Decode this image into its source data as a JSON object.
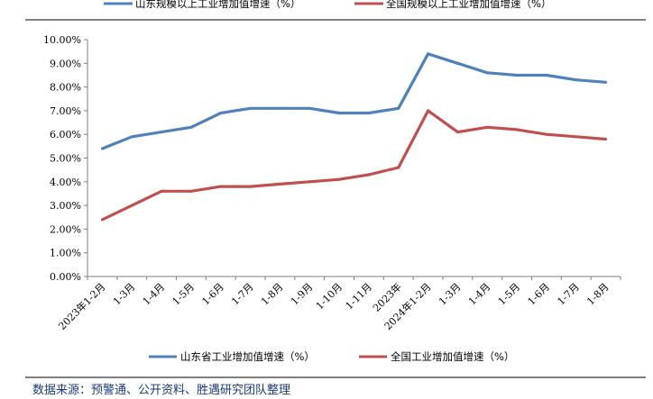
{
  "chart_data": {
    "type": "line",
    "categories": [
      "2023年1-2月",
      "1-3月",
      "1-4月",
      "1-5月",
      "1-6月",
      "1-7月",
      "1-8月",
      "1-9月",
      "1-10月",
      "1-11月",
      "2023年",
      "2024年1-2月",
      "1-3月",
      "1-4月",
      "1-5月",
      "1-6月",
      "1-7月",
      "1-8月"
    ],
    "series": [
      {
        "name": "山东省工业增加值增速（%）",
        "color": "#4f81bd",
        "values": [
          5.4,
          5.9,
          6.1,
          6.3,
          6.9,
          7.1,
          7.1,
          7.1,
          6.9,
          6.9,
          7.1,
          9.4,
          9.0,
          8.6,
          8.5,
          8.5,
          8.3,
          8.2
        ]
      },
      {
        "name": "全国工业增加值增速（%）",
        "color": "#c0504d",
        "values": [
          2.4,
          3.0,
          3.6,
          3.6,
          3.8,
          3.8,
          3.9,
          4.0,
          4.1,
          4.3,
          4.6,
          7.0,
          6.1,
          6.3,
          6.2,
          6.0,
          5.9,
          5.8
        ]
      }
    ],
    "top_legend": [
      "山东规模以上工业增加值增速（%）",
      "全国规模以上工业增加值增速（%）"
    ],
    "yticks": [
      "0.00%",
      "1.00%",
      "2.00%",
      "3.00%",
      "4.00%",
      "5.00%",
      "6.00%",
      "7.00%",
      "8.00%",
      "9.00%",
      "10.00%"
    ],
    "ylim": [
      0,
      10
    ],
    "grid": false,
    "legend_placement": "bottom"
  },
  "source_note": "数据来源：预警通、公开资料、胜遇研究团队整理"
}
